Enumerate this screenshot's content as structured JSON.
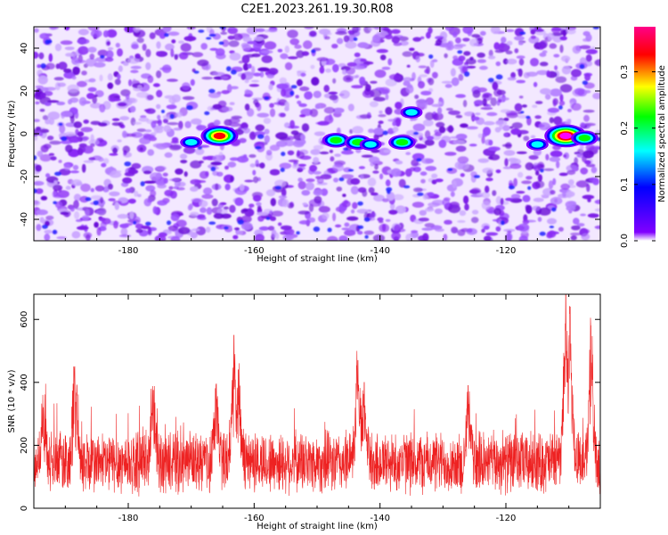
{
  "chart_data": [
    {
      "type": "heatmap",
      "title": "C2E1.2023.261.19.30.R08",
      "xlabel": "Height of straight line (km)",
      "ylabel": "Frequency (Hz)",
      "xlim": [
        -195,
        -105
      ],
      "ylim": [
        -50,
        50
      ],
      "xticks": [
        -180,
        -160,
        -140,
        -120
      ],
      "yticks": [
        -40,
        -20,
        0,
        20,
        40
      ],
      "colorbar": {
        "label": "Normalized spectral amplitude",
        "range": [
          0,
          0.38
        ],
        "ticks": [
          "0.0",
          "0.1",
          "0.2",
          "0.3"
        ],
        "colors": [
          "#ffffff",
          "#8000ff",
          "#0000ff",
          "#00ffff",
          "#00ff00",
          "#ffff00",
          "#ff0000",
          "#ff00ff"
        ]
      },
      "hotspots": [
        {
          "x": -165.5,
          "y": -1,
          "amplitude": 0.3
        },
        {
          "x": -147,
          "y": -3,
          "amplitude": 0.2
        },
        {
          "x": -143.5,
          "y": -4,
          "amplitude": 0.22
        },
        {
          "x": -141.5,
          "y": -5,
          "amplitude": 0.16
        },
        {
          "x": -136.5,
          "y": -4,
          "amplitude": 0.2
        },
        {
          "x": -135,
          "y": 10,
          "amplitude": 0.12
        },
        {
          "x": -110.5,
          "y": -1,
          "amplitude": 0.36
        },
        {
          "x": -107.5,
          "y": -2,
          "amplitude": 0.22
        },
        {
          "x": -115,
          "y": -5,
          "amplitude": 0.12
        },
        {
          "x": -170,
          "y": -4,
          "amplitude": 0.12
        }
      ]
    },
    {
      "type": "line",
      "xlabel": "Height of straight line (km)",
      "ylabel": "SNR (10 * v/v)",
      "xlim": [
        -195,
        -105
      ],
      "ylim": [
        0,
        680
      ],
      "xticks": [
        -180,
        -160,
        -140,
        -120
      ],
      "yticks": [
        0,
        200,
        400,
        600
      ],
      "color": "#ee2222",
      "baseline_mean": 145,
      "peaks": [
        {
          "x": -193.5,
          "y": 320
        },
        {
          "x": -188.5,
          "y": 450
        },
        {
          "x": -176,
          "y": 375
        },
        {
          "x": -166,
          "y": 395
        },
        {
          "x": -163.2,
          "y": 550
        },
        {
          "x": -162.5,
          "y": 440
        },
        {
          "x": -143.5,
          "y": 470
        },
        {
          "x": -142.5,
          "y": 400
        },
        {
          "x": -126,
          "y": 390
        },
        {
          "x": -110.5,
          "y": 680
        },
        {
          "x": -109.8,
          "y": 640
        },
        {
          "x": -106.5,
          "y": 580
        }
      ]
    }
  ]
}
